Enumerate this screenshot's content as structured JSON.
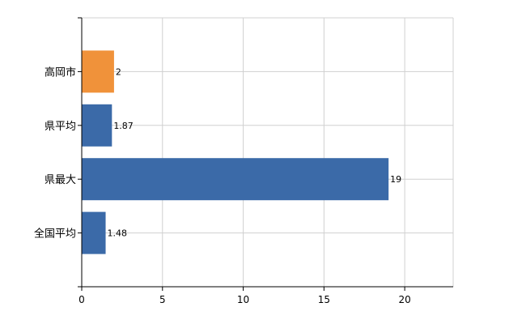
{
  "chart_data": {
    "type": "bar",
    "orientation": "horizontal",
    "categories": [
      "高岡市",
      "県平均",
      "県最大",
      "全国平均"
    ],
    "values": [
      2,
      1.87,
      19,
      1.48
    ],
    "value_labels": [
      "2",
      "1.87",
      "19",
      "1.48"
    ],
    "bar_colors": [
      "#f0923a",
      "#3b6aa8",
      "#3b6aa8",
      "#3b6aa8"
    ],
    "xlim": [
      0,
      23
    ],
    "xticks": [
      0,
      5,
      10,
      15,
      20
    ],
    "title": "",
    "xlabel": "",
    "ylabel": "",
    "grid": true,
    "legend": "none"
  },
  "colors": {
    "highlight": "#f0923a",
    "default": "#3b6aa8",
    "grid": "#d0d0d0",
    "axis": "#000000"
  }
}
